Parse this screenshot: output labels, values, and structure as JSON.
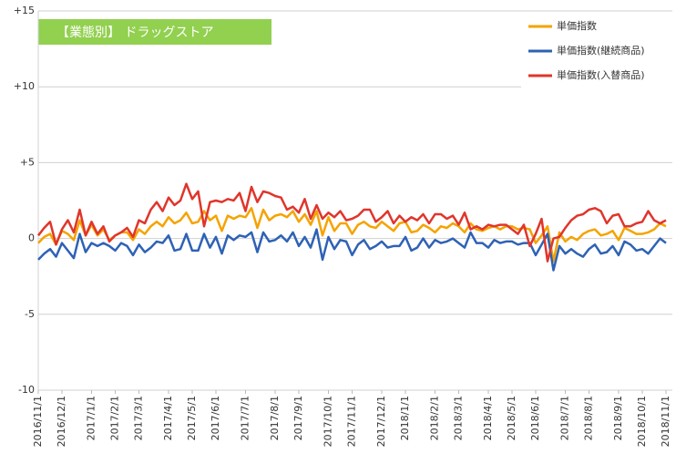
{
  "chart_data": {
    "type": "line",
    "title": "【業態別】 ドラッグストア",
    "categories": [
      "2016/11/1",
      null,
      null,
      null,
      "2016/12/1",
      null,
      null,
      null,
      null,
      "2017/1/1",
      null,
      null,
      null,
      "2017/2/1",
      null,
      null,
      null,
      "2017/3/1",
      null,
      null,
      null,
      null,
      "2017/4/1",
      null,
      null,
      null,
      "2017/5/1",
      null,
      null,
      null,
      "2017/6/1",
      null,
      null,
      null,
      null,
      "2017/7/1",
      null,
      null,
      null,
      null,
      "2017/8/1",
      null,
      null,
      null,
      "2017/9/1",
      null,
      null,
      null,
      null,
      "2017/10/1",
      null,
      null,
      null,
      "2017/11/1",
      null,
      null,
      null,
      null,
      "2017/12/1",
      null,
      null,
      null,
      "2018/1/1",
      null,
      null,
      null,
      null,
      "2018/2/1",
      null,
      null,
      null,
      "2018/3/1",
      null,
      null,
      null,
      null,
      "2018/4/1",
      null,
      null,
      null,
      "2018/5/1",
      null,
      null,
      null,
      "2018/6/1",
      null,
      null,
      null,
      null,
      "2018/7/1",
      null,
      null,
      null,
      "2018/8/1",
      null,
      null,
      null,
      null,
      "2018/9/1",
      null,
      null,
      null,
      "2018/10/1",
      null,
      null,
      null,
      "2018/11/1"
    ],
    "series": [
      {
        "name": "単価指数",
        "color": "#f5a300",
        "values": [
          -0.3,
          0.1,
          0.3,
          -0.4,
          0.5,
          0.3,
          -0.1,
          1.2,
          0.2,
          0.9,
          0.2,
          0.6,
          -0.1,
          0.2,
          0.4,
          0.4,
          -0.1,
          0.6,
          0.3,
          0.8,
          1.1,
          0.8,
          1.4,
          1.0,
          1.2,
          1.7,
          1.0,
          1.1,
          1.8,
          1.2,
          1.5,
          0.5,
          1.5,
          1.3,
          1.5,
          1.4,
          2.0,
          0.7,
          1.9,
          1.2,
          1.5,
          1.6,
          1.4,
          1.8,
          1.1,
          1.6,
          0.9,
          1.8,
          0.2,
          1.4,
          0.5,
          1.0,
          1.0,
          0.3,
          0.9,
          1.1,
          0.8,
          0.7,
          1.1,
          0.8,
          0.5,
          1.0,
          1.1,
          0.4,
          0.5,
          0.9,
          0.7,
          0.4,
          0.8,
          0.7,
          1.0,
          0.8,
          0.4,
          1.0,
          0.6,
          0.5,
          0.7,
          0.8,
          0.6,
          0.8,
          0.8,
          0.6,
          0.7,
          0.6,
          -0.3,
          0.2,
          0.8,
          -1.5,
          0.4,
          -0.2,
          0.1,
          -0.1,
          0.3,
          0.5,
          0.6,
          0.2,
          0.3,
          0.5,
          -0.1,
          0.7,
          0.5,
          0.3,
          0.3,
          0.4,
          0.6,
          1.0,
          0.8
        ]
      },
      {
        "name": "単価指数(継続商品)",
        "color": "#2e62b5",
        "values": [
          -1.4,
          -1.0,
          -0.7,
          -1.2,
          -0.3,
          -0.8,
          -1.3,
          0.3,
          -0.9,
          -0.3,
          -0.5,
          -0.3,
          -0.5,
          -0.8,
          -0.3,
          -0.5,
          -1.1,
          -0.4,
          -0.9,
          -0.6,
          -0.2,
          -0.3,
          0.2,
          -0.8,
          -0.7,
          0.3,
          -0.8,
          -0.8,
          0.3,
          -0.6,
          0.1,
          -1.0,
          0.2,
          -0.1,
          0.2,
          0.1,
          0.4,
          -0.9,
          0.4,
          -0.2,
          -0.1,
          0.2,
          -0.2,
          0.4,
          -0.5,
          0.1,
          -0.6,
          0.6,
          -1.4,
          0.1,
          -0.7,
          -0.1,
          -0.2,
          -1.1,
          -0.4,
          -0.1,
          -0.7,
          -0.5,
          -0.2,
          -0.6,
          -0.5,
          -0.5,
          0.1,
          -0.8,
          -0.6,
          0.0,
          -0.6,
          -0.1,
          -0.3,
          -0.2,
          0.0,
          -0.3,
          -0.6,
          0.4,
          -0.3,
          -0.3,
          -0.6,
          -0.1,
          -0.3,
          -0.2,
          -0.2,
          -0.4,
          -0.3,
          -0.3,
          -1.1,
          -0.4,
          0.3,
          -2.1,
          -0.5,
          -1.0,
          -0.7,
          -1.0,
          -1.2,
          -0.7,
          -0.4,
          -1.0,
          -0.9,
          -0.5,
          -1.1,
          -0.2,
          -0.4,
          -0.8,
          -0.7,
          -1.0,
          -0.5,
          0.0,
          -0.3
        ]
      },
      {
        "name": "単価指数(入替商品)",
        "color": "#e0352b",
        "values": [
          0.2,
          0.7,
          1.1,
          -0.4,
          0.6,
          1.2,
          0.4,
          1.9,
          0.2,
          1.1,
          0.3,
          0.8,
          -0.2,
          0.2,
          0.4,
          0.7,
          0.1,
          1.2,
          1.0,
          1.9,
          2.4,
          1.8,
          2.7,
          2.2,
          2.5,
          3.6,
          2.6,
          3.1,
          0.8,
          2.4,
          2.5,
          2.4,
          2.6,
          2.5,
          3.0,
          1.8,
          3.4,
          2.4,
          3.1,
          3.0,
          2.8,
          2.7,
          1.9,
          2.1,
          1.7,
          2.6,
          1.3,
          2.2,
          1.3,
          1.7,
          1.4,
          1.8,
          1.2,
          1.3,
          1.5,
          1.9,
          1.9,
          1.1,
          1.4,
          1.8,
          1.0,
          1.5,
          1.1,
          1.4,
          1.2,
          1.6,
          1.0,
          1.6,
          1.6,
          1.3,
          1.5,
          0.9,
          1.7,
          0.6,
          0.8,
          0.6,
          0.9,
          0.8,
          0.9,
          0.9,
          0.6,
          0.3,
          0.9,
          -0.5,
          0.3,
          1.3,
          -1.5,
          0.0,
          0.1,
          0.7,
          1.2,
          1.5,
          1.6,
          1.9,
          2.0,
          1.8,
          1.0,
          1.5,
          1.6,
          0.8,
          0.8,
          1.0,
          1.1,
          1.8,
          1.2,
          1.0,
          1.2
        ]
      }
    ],
    "ylim": [
      -10,
      15
    ],
    "yticks": [
      {
        "value": 15,
        "label": "+15"
      },
      {
        "value": 10,
        "label": "+10"
      },
      {
        "value": 5,
        "label": "+5"
      },
      0,
      -5,
      -10
    ],
    "grid": true,
    "legend": "top-right"
  }
}
